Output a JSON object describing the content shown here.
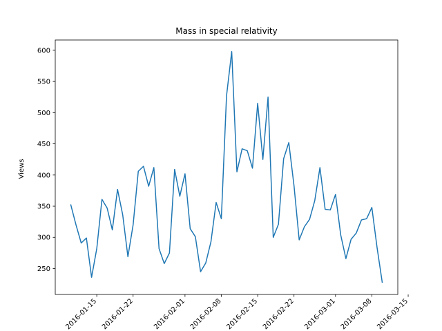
{
  "chart_data": {
    "type": "line",
    "title": "Mass in special relativity",
    "xlabel": "",
    "ylabel": "Views",
    "grid": false,
    "line_color": "#1f77b4",
    "x_start": "2016-01-10",
    "x_labels": [
      "2016-01-15",
      "2016-01-22",
      "2016-02-01",
      "2016-02-08",
      "2016-02-15",
      "2016-02-22",
      "2016-03-01",
      "2016-03-08",
      "2016-03-15"
    ],
    "y_ticks": [
      250,
      300,
      350,
      400,
      450,
      500,
      550,
      600
    ],
    "values": [
      352,
      320,
      291,
      299,
      236,
      282,
      361,
      347,
      312,
      377,
      336,
      269,
      320,
      406,
      414,
      382,
      412,
      282,
      258,
      275,
      409,
      366,
      402,
      314,
      301,
      245,
      259,
      293,
      356,
      330,
      527,
      598,
      405,
      442,
      439,
      411,
      515,
      425,
      525,
      300,
      321,
      426,
      452,
      383,
      296,
      317,
      329,
      359,
      412,
      345,
      344,
      369,
      304,
      266,
      297,
      307,
      328,
      330,
      348,
      284,
      228
    ]
  }
}
